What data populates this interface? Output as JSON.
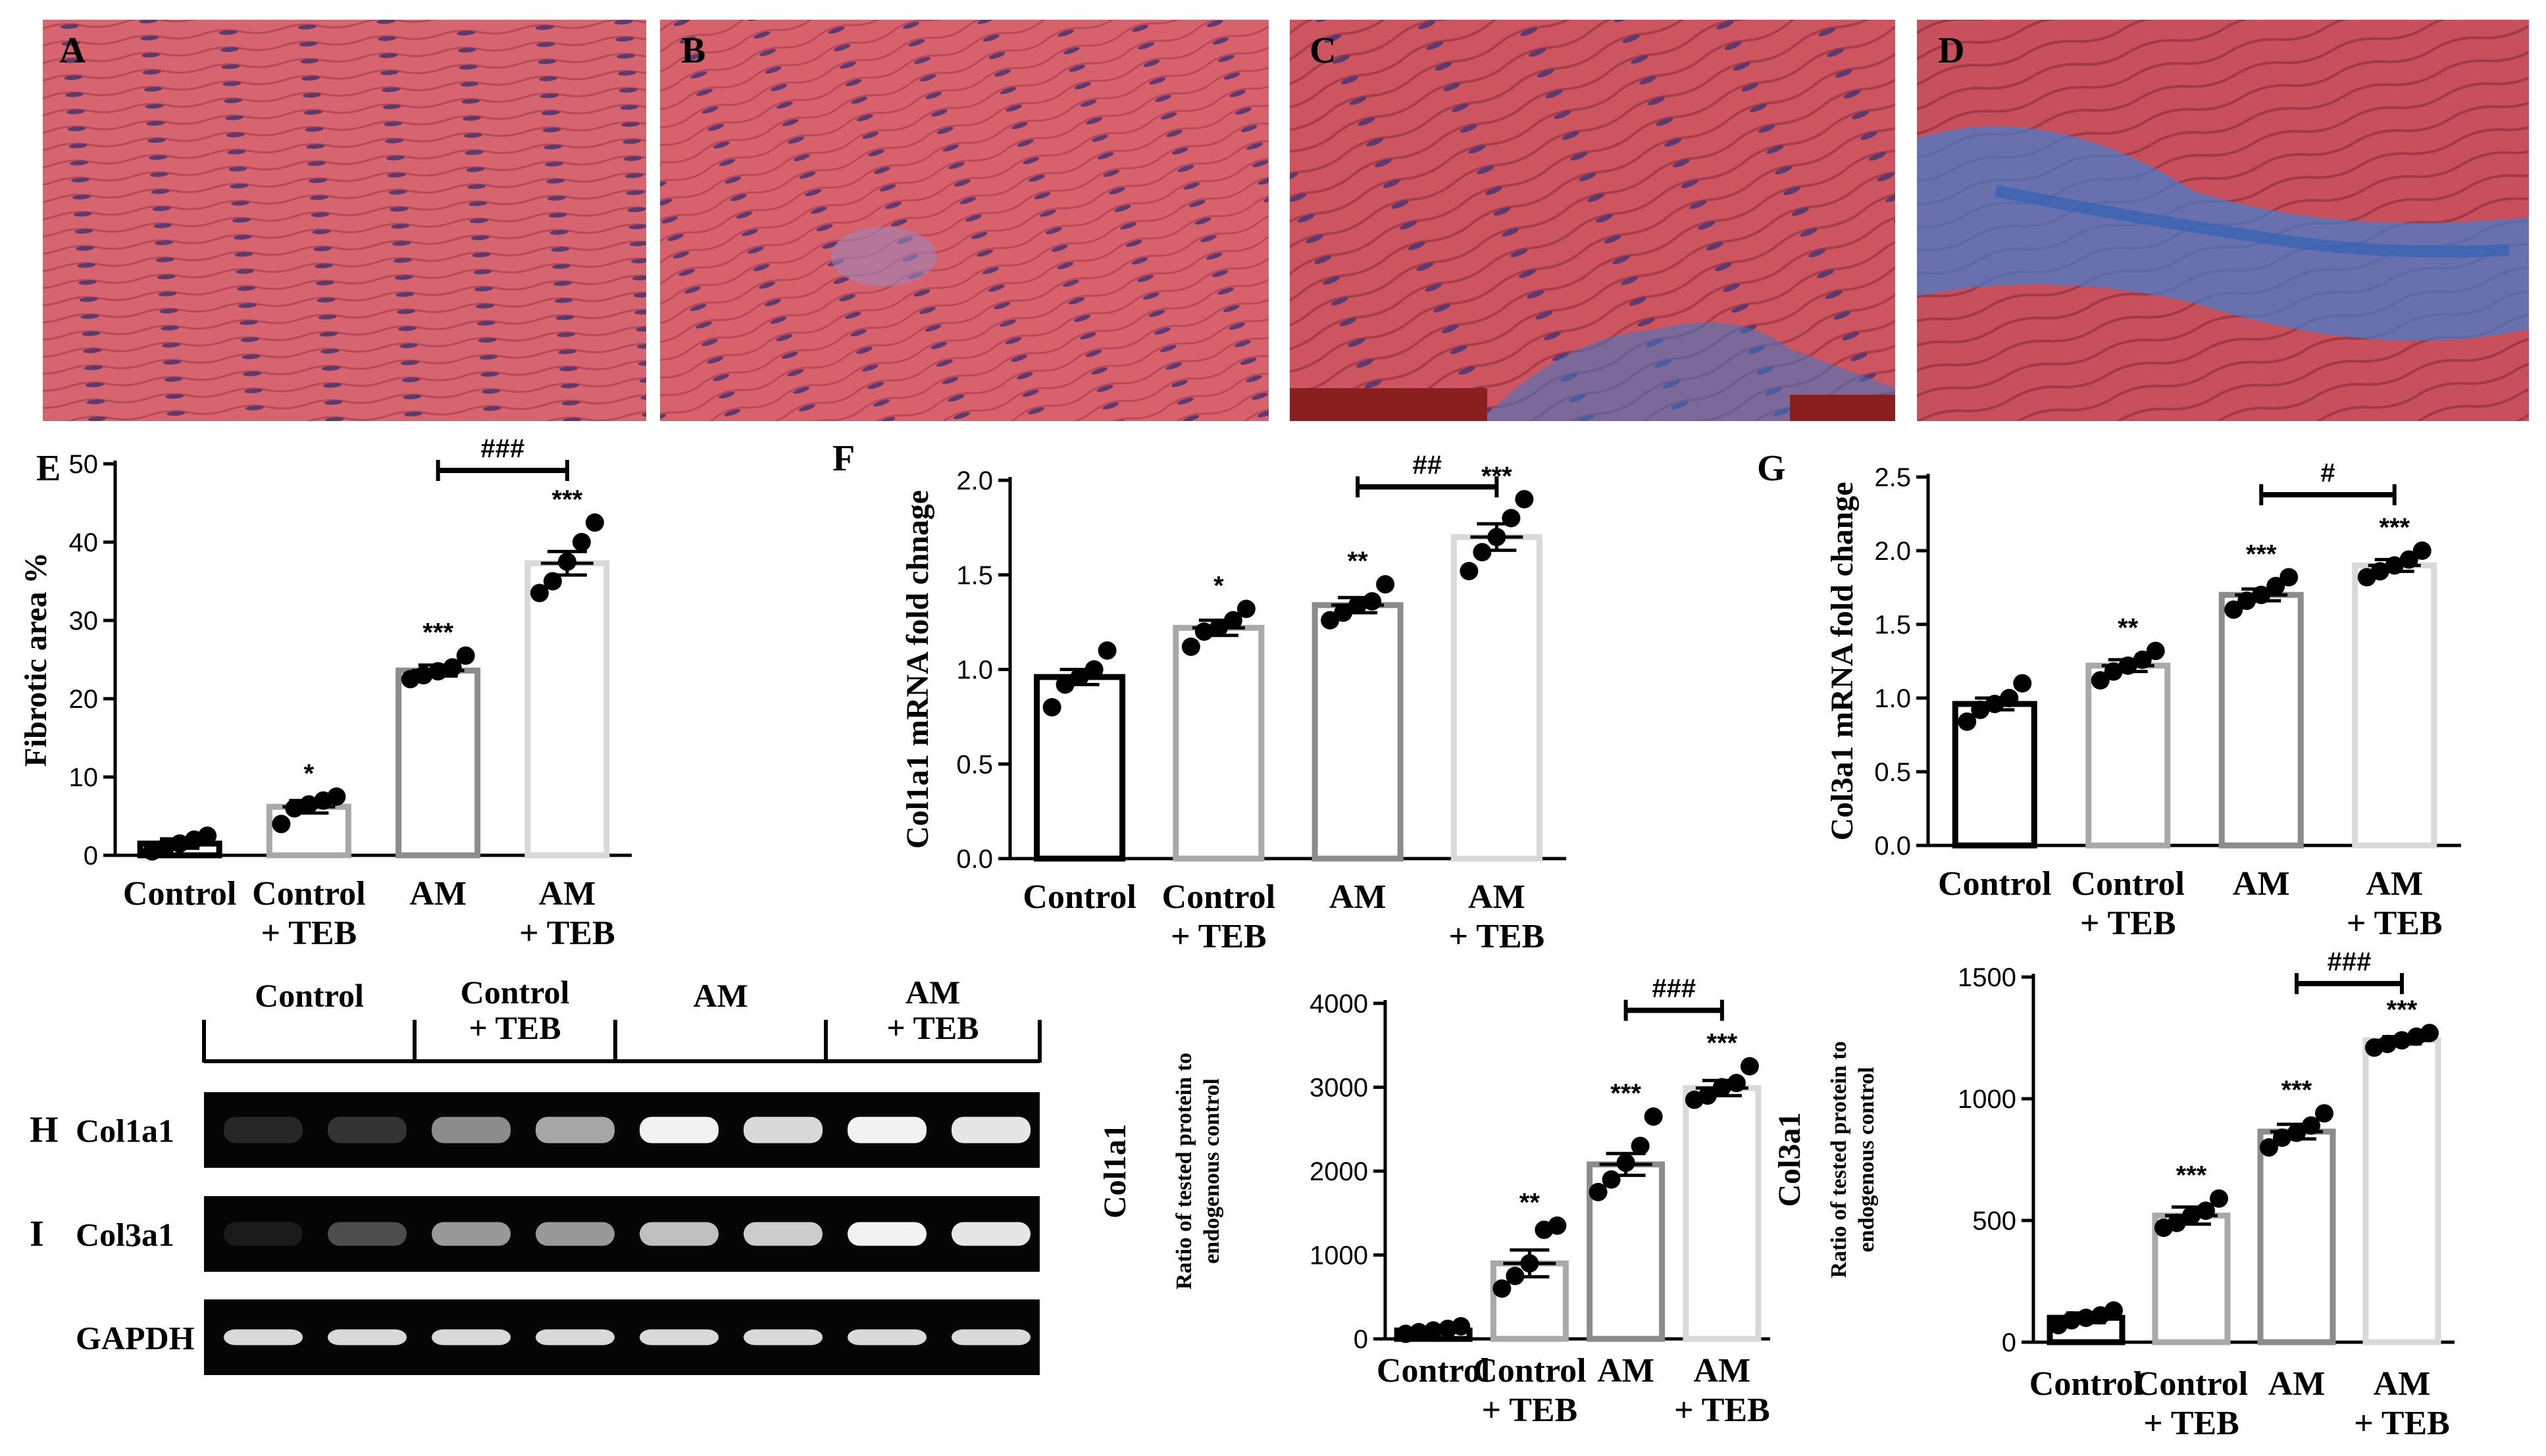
{
  "panels": {
    "A": "A",
    "B": "B",
    "C": "C",
    "D": "D",
    "E": "E",
    "F": "F",
    "G": "G",
    "H": "H",
    "I": "I"
  },
  "colors": {
    "tissue": "#d45a64",
    "collagen": "#3a7fd0",
    "bar_control": "#000000",
    "bar_control_teb": "#a9a9a9",
    "bar_am": "#8c8c8c",
    "bar_am_teb": "#d9d9d9"
  },
  "blot": {
    "groups": [
      "Control",
      "Control\n+ TEB",
      "AM",
      "AM\n+ TEB"
    ],
    "rows": [
      "Col1a1",
      "Col3a1",
      "GAPDH"
    ],
    "row_panels": [
      "H",
      "I",
      ""
    ]
  },
  "chart_data": [
    {
      "panel": "E",
      "type": "bar",
      "categories": [
        "Control",
        "Control\n+ TEB",
        "AM",
        "AM\n+ TEB"
      ],
      "values": [
        1.5,
        6.2,
        23.6,
        37.3
      ],
      "sem": [
        0.6,
        0.8,
        0.7,
        1.5
      ],
      "points": [
        [
          0.5,
          1.0,
          1.5,
          2.0,
          2.5
        ],
        [
          4.0,
          6.0,
          6.5,
          7.0,
          7.5
        ],
        [
          22.5,
          23.0,
          23.5,
          24.0,
          25.5
        ],
        [
          33.5,
          35.0,
          37.5,
          40.0,
          42.5
        ]
      ],
      "significance": [
        "",
        "*",
        "***",
        "***"
      ],
      "comparison": {
        "from": 2,
        "to": 3,
        "label": "###"
      },
      "ylabel": "Fibrotic area %",
      "ylim": [
        0,
        50
      ],
      "yticks": [
        0,
        10,
        20,
        30,
        40,
        50
      ]
    },
    {
      "panel": "F",
      "type": "bar",
      "categories": [
        "Control",
        "Control\n+ TEB",
        "AM",
        "AM\n+ TEB"
      ],
      "values": [
        0.96,
        1.22,
        1.34,
        1.7
      ],
      "sem": [
        0.04,
        0.04,
        0.04,
        0.07
      ],
      "points": [
        [
          0.8,
          0.92,
          0.96,
          1.0,
          1.1
        ],
        [
          1.12,
          1.2,
          1.22,
          1.26,
          1.32
        ],
        [
          1.26,
          1.3,
          1.34,
          1.36,
          1.45
        ],
        [
          1.52,
          1.62,
          1.7,
          1.8,
          1.9
        ]
      ],
      "significance": [
        "",
        "*",
        "**",
        "***"
      ],
      "comparison": {
        "from": 2,
        "to": 3,
        "label": "##"
      },
      "ylabel": "Col1a1 mRNA fold chnage",
      "ylim": [
        0,
        2.0
      ],
      "yticks": [
        "0.0",
        "0.5",
        "1.0",
        "1.5",
        "2.0"
      ]
    },
    {
      "panel": "G",
      "type": "bar",
      "categories": [
        "Control",
        "Control\n+ TEB",
        "AM",
        "AM\n+ TEB"
      ],
      "values": [
        0.96,
        1.22,
        1.7,
        1.9
      ],
      "sem": [
        0.04,
        0.04,
        0.04,
        0.04
      ],
      "points": [
        [
          0.84,
          0.92,
          0.96,
          1.0,
          1.1
        ],
        [
          1.12,
          1.18,
          1.22,
          1.26,
          1.32
        ],
        [
          1.6,
          1.66,
          1.7,
          1.76,
          1.82
        ],
        [
          1.82,
          1.86,
          1.9,
          1.94,
          2.0
        ]
      ],
      "significance": [
        "",
        "**",
        "***",
        "***"
      ],
      "comparison": {
        "from": 2,
        "to": 3,
        "label": "#"
      },
      "ylabel": "Col3a1 mRNA fold change",
      "ylim": [
        0,
        2.5
      ],
      "yticks": [
        "0.0",
        "0.5",
        "1.0",
        "1.5",
        "2.0",
        "2.5"
      ]
    },
    {
      "panel": "H",
      "type": "bar",
      "categories": [
        "Control",
        "Control\n+ TEB",
        "AM",
        "AM\n+ TEB"
      ],
      "values": [
        100,
        900,
        2080,
        2990
      ],
      "sem": [
        20,
        160,
        130,
        90
      ],
      "points": [
        [
          60,
          80,
          100,
          120,
          150
        ],
        [
          600,
          750,
          900,
          1300,
          1350
        ],
        [
          1750,
          1900,
          2100,
          2300,
          2650
        ],
        [
          2850,
          2900,
          3000,
          3050,
          3250
        ]
      ],
      "significance": [
        "",
        "**",
        "***",
        "***"
      ],
      "comparison": {
        "from": 2,
        "to": 3,
        "label": "###"
      },
      "title": "Col1a1",
      "ylabel": "Ratio of tested protein to\nendogenous control",
      "ylim": [
        0,
        4000
      ],
      "yticks": [
        0,
        1000,
        2000,
        3000,
        4000
      ]
    },
    {
      "panel": "I",
      "type": "bar",
      "categories": [
        "Control",
        "Control\n+ TEB",
        "AM",
        "AM\n+ TEB"
      ],
      "values": [
        100,
        520,
        865,
        1240
      ],
      "sem": [
        20,
        35,
        30,
        15
      ],
      "points": [
        [
          70,
          90,
          100,
          110,
          130
        ],
        [
          470,
          490,
          520,
          540,
          590
        ],
        [
          800,
          840,
          860,
          890,
          940
        ],
        [
          1210,
          1225,
          1240,
          1255,
          1270
        ]
      ],
      "significance": [
        "",
        "***",
        "***",
        "***"
      ],
      "comparison": {
        "from": 2,
        "to": 3,
        "label": "###"
      },
      "title": "Col3a1",
      "ylabel": "Ratio of tested protein to\nendogenous control",
      "ylim": [
        0,
        1500
      ],
      "yticks": [
        0,
        500,
        1000,
        1500
      ]
    }
  ]
}
